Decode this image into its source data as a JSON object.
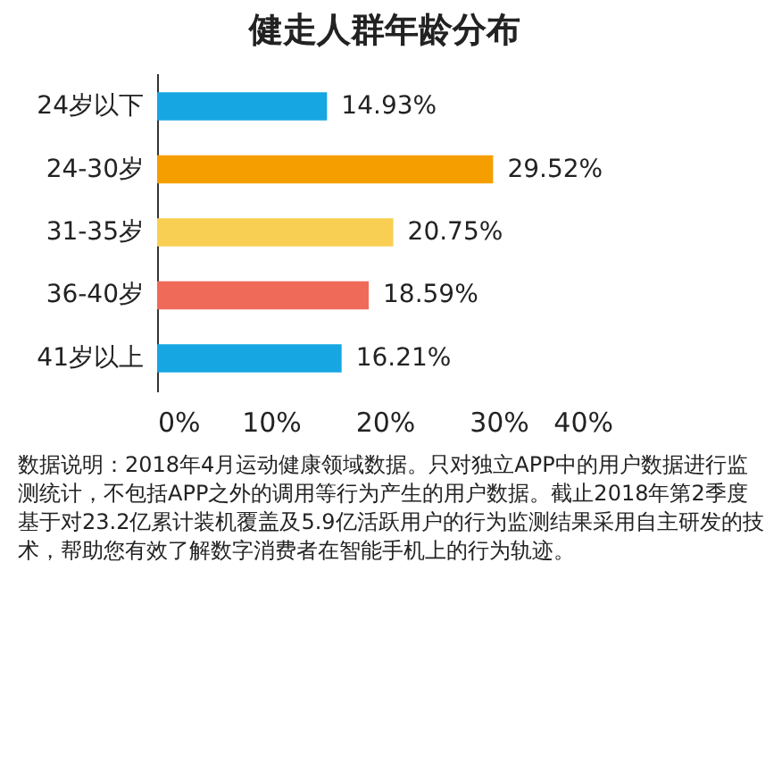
{
  "chart_data": {
    "type": "bar",
    "orientation": "horizontal",
    "title": "健走人群年龄分布",
    "categories": [
      "24岁以下",
      "24-30岁",
      "31-35岁",
      "36-40岁",
      "41岁以上"
    ],
    "values": [
      14.93,
      29.52,
      20.75,
      18.59,
      16.21
    ],
    "colors": [
      "#16a6e2",
      "#f59e00",
      "#f8cf52",
      "#ef6a59",
      "#16a6e2"
    ],
    "value_labels": [
      "14.93%",
      "29.52%",
      "20.75%",
      "18.59%",
      "16.21%"
    ],
    "xlim": [
      0,
      40
    ],
    "xticks": [
      {
        "value": 0,
        "label": "0%"
      },
      {
        "value": 10,
        "label": "10%"
      },
      {
        "value": 20,
        "label": "20%"
      },
      {
        "value": 30,
        "label": "30%"
      },
      {
        "value": 40,
        "label": "40%"
      }
    ],
    "grid": false,
    "annotations": [
      "数据说明：2018年4月运动健康领域数据。只对独立APP中的用户数据进行监测统计，不包括APP之外的调用等行为产生的用户数据。截止2018年第2季度基于对23.2亿累计装机覆盖及5.9亿活跃用户的行为监测结果采用自主研发的技术，帮助您有效了解数字消费者在智能手机上的行为轨迹。"
    ]
  }
}
